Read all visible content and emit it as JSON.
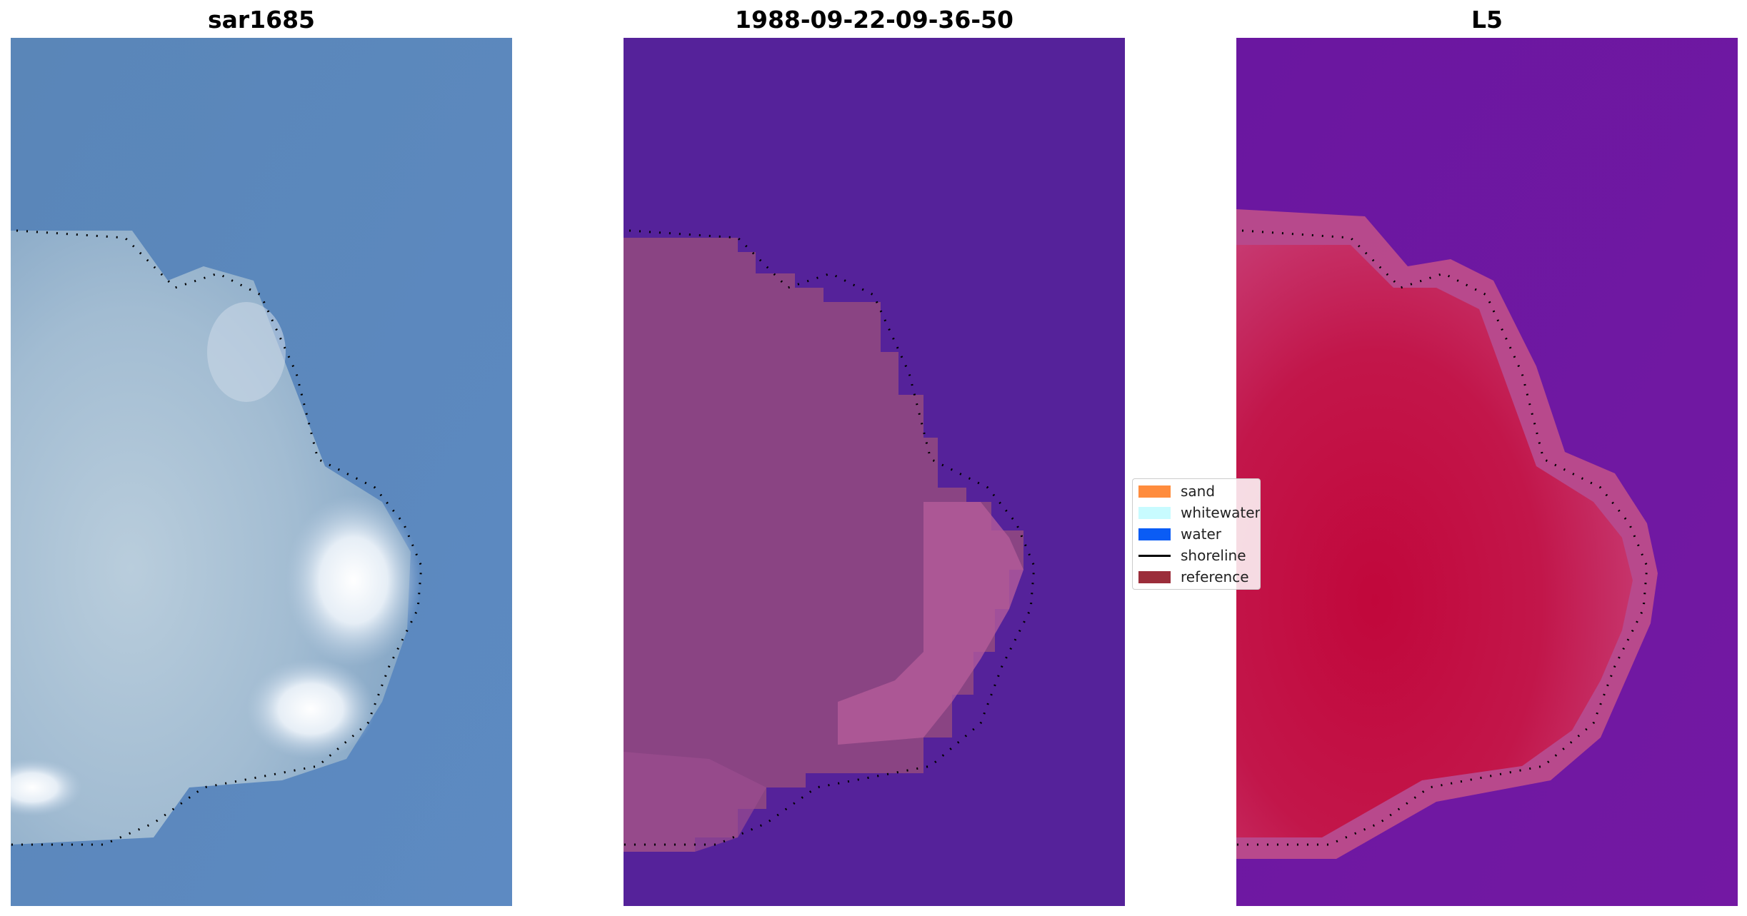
{
  "panels": [
    {
      "id": "rgb",
      "title": "sar1685"
    },
    {
      "id": "class",
      "title": "1988-09-22-09-36-50"
    },
    {
      "id": "mndwi",
      "title": "L5"
    }
  ],
  "legend": {
    "items": [
      {
        "label": "sand",
        "color": "#ff8c3d",
        "kind": "patch"
      },
      {
        "label": "whitewater",
        "color": "#c8fbff",
        "kind": "patch"
      },
      {
        "label": "water",
        "color": "#0a5cf5",
        "kind": "patch"
      },
      {
        "label": "shoreline",
        "color": "#000000",
        "kind": "line"
      },
      {
        "label": "reference",
        "color": "#9b2d3a",
        "kind": "patch"
      }
    ]
  },
  "colors": {
    "rgb_water": "#5b86bd",
    "rgb_land": "#9bb7cf",
    "rgb_whitewater": "#f4f7fb",
    "class_water": "#55229a",
    "class_land": "#8b4384",
    "class_edge": "#b45a9a",
    "mndwi_water": "#6d1ba0",
    "mndwi_land": "#c2123f",
    "mndwi_edge": "#c9467e"
  }
}
